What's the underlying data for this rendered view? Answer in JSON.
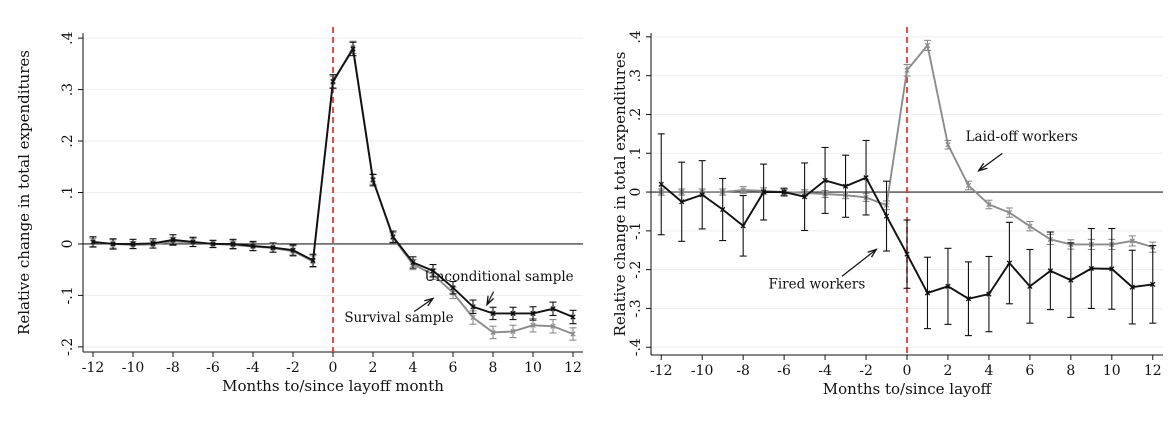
{
  "chart_data": [
    {
      "type": "line",
      "xlabel": "Months to/since layoff month",
      "ylabel": "Relative change in total expenditures",
      "xlim": [
        -12.5,
        12.5
      ],
      "ylim": [
        -0.21,
        0.41
      ],
      "xticks": [
        -12,
        -10,
        -8,
        -6,
        -4,
        -2,
        0,
        2,
        4,
        6,
        8,
        10,
        12
      ],
      "yticks": [
        -0.2,
        -0.1,
        0,
        0.1,
        0.2,
        0.3,
        0.4
      ],
      "ytick_labels": [
        "-.2",
        "-.1",
        "0",
        ".1",
        ".2",
        ".3",
        ".4"
      ],
      "xtick_labels": [
        "-12",
        "-10",
        "-8",
        "-6",
        "-4",
        "-2",
        "0",
        "2",
        "4",
        "6",
        "8",
        "10",
        "12"
      ],
      "zero_line": true,
      "vline_x": 0,
      "series": [
        {
          "name": "Survival sample",
          "color": "#8c8c8c",
          "x": [
            -12,
            -11,
            -10,
            -9,
            -8,
            -7,
            -6,
            -5,
            -4,
            -3,
            -2,
            -1,
            0,
            1,
            2,
            3,
            4,
            5,
            6,
            7,
            8,
            9,
            10,
            11,
            12
          ],
          "y": [
            0.003,
            0,
            -0.002,
            -0.001,
            0.005,
            0.003,
            0,
            -0.002,
            -0.005,
            -0.008,
            -0.014,
            -0.034,
            0.314,
            0.382,
            0.126,
            0.012,
            -0.04,
            -0.059,
            -0.095,
            -0.143,
            -0.172,
            -0.17,
            -0.158,
            -0.16,
            -0.175
          ],
          "err": [
            0.008,
            0.008,
            0.007,
            0.007,
            0.008,
            0.008,
            0.007,
            0.008,
            0.008,
            0.008,
            0.01,
            0.011,
            0.012,
            0.012,
            0.01,
            0.01,
            0.01,
            0.01,
            0.011,
            0.013,
            0.012,
            0.012,
            0.013,
            0.013,
            0.012
          ]
        },
        {
          "name": "Unconditional sample",
          "color": "#111111",
          "x": [
            -12,
            -11,
            -10,
            -9,
            -8,
            -7,
            -6,
            -5,
            -4,
            -3,
            -2,
            -1,
            0,
            1,
            2,
            3,
            4,
            5,
            6,
            7,
            8,
            9,
            10,
            11,
            12
          ],
          "y": [
            0.004,
            0,
            0,
            0.001,
            0.008,
            0.004,
            0,
            0,
            -0.004,
            -0.007,
            -0.012,
            -0.032,
            0.316,
            0.379,
            0.124,
            0.014,
            -0.036,
            -0.052,
            -0.085,
            -0.122,
            -0.135,
            -0.135,
            -0.135,
            -0.126,
            -0.142
          ],
          "err": [
            0.01,
            0.01,
            0.009,
            0.009,
            0.01,
            0.009,
            0.007,
            0.009,
            0.009,
            0.009,
            0.01,
            0.012,
            0.013,
            0.013,
            0.011,
            0.011,
            0.011,
            0.012,
            0.012,
            0.013,
            0.012,
            0.012,
            0.013,
            0.013,
            0.013
          ]
        }
      ],
      "annotations": [
        {
          "text": "Unconditional sample",
          "x": 8.3,
          "y": -0.072,
          "arrow_to": [
            7.7,
            -0.118
          ]
        },
        {
          "text": "Survival sample",
          "x": 3.3,
          "y": -0.152,
          "arrow_to": [
            5.0,
            -0.106
          ]
        }
      ]
    },
    {
      "type": "line",
      "xlabel": "Months to/since layoff",
      "ylabel": "Relative change in total expenditures",
      "xlim": [
        -12.5,
        12.5
      ],
      "ylim": [
        -0.42,
        0.41
      ],
      "xticks": [
        -12,
        -10,
        -8,
        -6,
        -4,
        -2,
        0,
        2,
        4,
        6,
        8,
        10,
        12
      ],
      "yticks": [
        -0.4,
        -0.3,
        -0.2,
        -0.1,
        0,
        0.1,
        0.2,
        0.3,
        0.4
      ],
      "ytick_labels": [
        "-.4",
        "-.3",
        "-.2",
        "-.1",
        "0",
        ".1",
        ".2",
        ".3",
        ".4"
      ],
      "xtick_labels": [
        "-12",
        "-10",
        "-8",
        "-6",
        "-4",
        "-2",
        "0",
        "2",
        "4",
        "6",
        "8",
        "10",
        "12"
      ],
      "zero_line": true,
      "vline_x": 0,
      "series": [
        {
          "name": "Laid-off workers",
          "color": "#8c8c8c",
          "x": [
            -12,
            -11,
            -10,
            -9,
            -8,
            -7,
            -6,
            -5,
            -4,
            -3,
            -2,
            -1,
            0,
            1,
            2,
            3,
            4,
            5,
            6,
            7,
            8,
            9,
            10,
            11,
            12
          ],
          "y": [
            0,
            0,
            0,
            0,
            0.005,
            0.003,
            0,
            -0.002,
            -0.005,
            -0.008,
            -0.014,
            -0.034,
            0.314,
            0.378,
            0.122,
            0.017,
            -0.032,
            -0.053,
            -0.088,
            -0.122,
            -0.135,
            -0.135,
            -0.135,
            -0.126,
            -0.142
          ],
          "err": [
            0.008,
            0.008,
            0.008,
            0.008,
            0.009,
            0.008,
            0.007,
            0.008,
            0.009,
            0.009,
            0.01,
            0.011,
            0.015,
            0.013,
            0.011,
            0.011,
            0.011,
            0.012,
            0.012,
            0.013,
            0.012,
            0.013,
            0.013,
            0.013,
            0.013
          ]
        },
        {
          "name": "Fired workers",
          "color": "#111111",
          "x": [
            -12,
            -11,
            -10,
            -9,
            -8,
            -7,
            -6,
            -5,
            -4,
            -3,
            -2,
            -1,
            0,
            1,
            2,
            3,
            4,
            5,
            6,
            7,
            8,
            9,
            10,
            11,
            12
          ],
          "y": [
            0.02,
            -0.025,
            -0.007,
            -0.045,
            -0.087,
            0,
            0,
            -0.012,
            0.03,
            0.015,
            0.037,
            -0.062,
            -0.16,
            -0.26,
            -0.243,
            -0.275,
            -0.263,
            -0.183,
            -0.243,
            -0.203,
            -0.227,
            -0.197,
            -0.198,
            -0.245,
            -0.238
          ],
          "err": [
            0.13,
            0.102,
            0.088,
            0.08,
            0.078,
            0.072,
            0.01,
            0.087,
            0.085,
            0.08,
            0.096,
            0.09,
            0.088,
            0.092,
            0.098,
            0.095,
            0.097,
            0.105,
            0.095,
            0.1,
            0.096,
            0.103,
            0.104,
            0.095,
            0.1
          ]
        }
      ],
      "annotations": [
        {
          "text": "Laid-off workers",
          "x": 5.6,
          "y": 0.132,
          "arrow_to": [
            3.5,
            0.055
          ]
        },
        {
          "text": "Fired workers",
          "x": -4.4,
          "y": -0.248,
          "arrow_to": [
            -1.5,
            -0.148
          ]
        }
      ]
    }
  ]
}
